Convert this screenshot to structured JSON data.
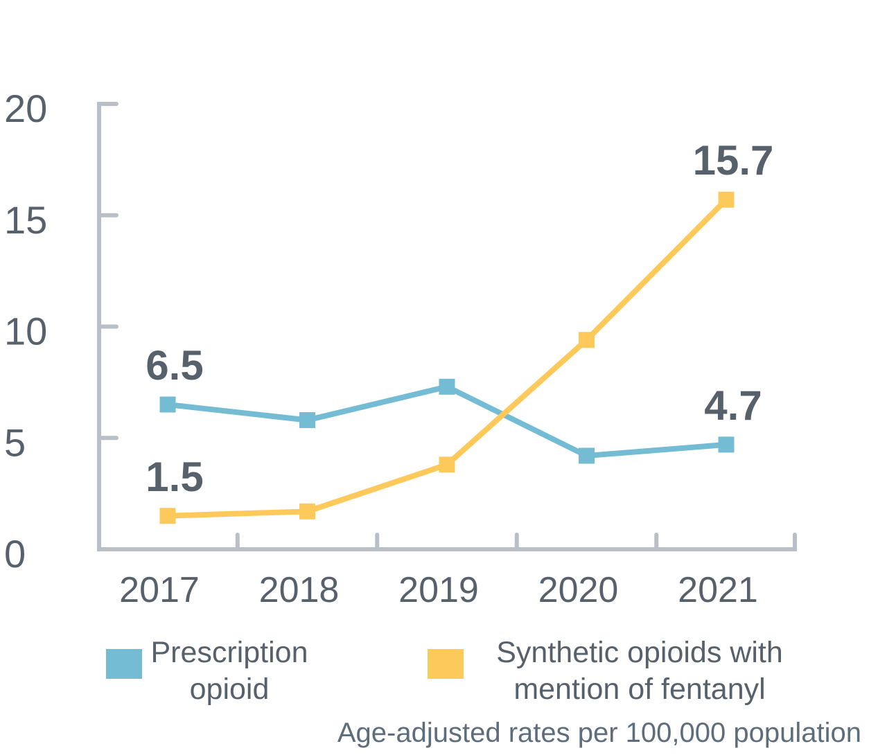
{
  "colors": {
    "prescription_blue": "#74BCD3",
    "fentanyl_yellow": "#FDC95B",
    "axis_gray": "#B8BFC7",
    "text_dark": "#57616C",
    "footnote_gray": "#5E6D7C",
    "background": "#FFFFFF"
  },
  "chart_data": {
    "type": "line",
    "categories": [
      "2017",
      "2018",
      "2019",
      "2020",
      "2021"
    ],
    "series": [
      {
        "name": "Prescription opioid",
        "color": "#74BCD3",
        "values": [
          6.5,
          5.8,
          7.3,
          4.2,
          4.7
        ]
      },
      {
        "name": "Synthetic opioids with mention of fentanyl",
        "color": "#FDC95B",
        "values": [
          1.5,
          1.7,
          3.8,
          9.4,
          15.7
        ]
      }
    ],
    "ylim": [
      0,
      20
    ],
    "yticks": [
      0,
      5,
      10,
      15,
      20
    ],
    "xlabel": "",
    "ylabel": "",
    "title": "",
    "grid": false,
    "marker": "square",
    "legend_position": "bottom",
    "data_labels": [
      {
        "text": "6.5",
        "series": 0,
        "point": 0
      },
      {
        "text": "4.7",
        "series": 0,
        "point": 4
      },
      {
        "text": "1.5",
        "series": 1,
        "point": 0
      },
      {
        "text": "15.7",
        "series": 1,
        "point": 4
      }
    ],
    "footnote": "Age-adjusted rates per 100,000 population"
  },
  "legend": {
    "items": [
      {
        "series": "Prescription opioid",
        "lines": [
          "Prescription",
          "opioid"
        ]
      },
      {
        "series": "Synthetic opioids with mention of fentanyl",
        "lines": [
          "Synthetic opioids with",
          "mention of fentanyl"
        ]
      }
    ]
  }
}
